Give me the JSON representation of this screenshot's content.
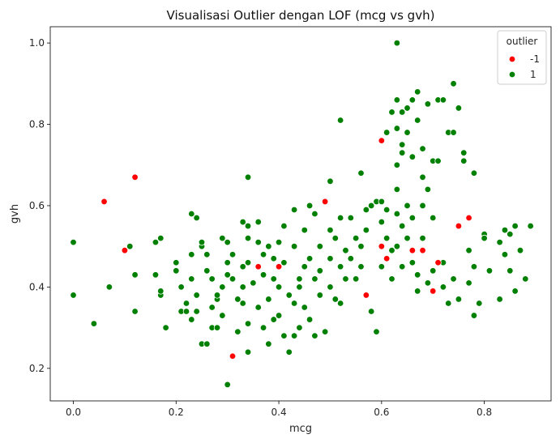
{
  "chart_data": {
    "type": "scatter",
    "title": "Visualisasi Outlier dengan LOF (mcg vs gvh)",
    "xlabel": "mcg",
    "ylabel": "gvh",
    "xlim": [
      -0.045,
      0.93
    ],
    "ylim": [
      0.12,
      1.04
    ],
    "x_ticks": [
      "0.0",
      "0.2",
      "0.4",
      "0.6",
      "0.8"
    ],
    "y_ticks": [
      "0.2",
      "0.4",
      "0.6",
      "0.8",
      "1.0"
    ],
    "grid": false,
    "legend": {
      "title": "outlier",
      "placement": "top-right"
    },
    "series": [
      {
        "name": "-1",
        "color": "#ff0000",
        "points": [
          [
            0.06,
            0.61
          ],
          [
            0.12,
            0.67
          ],
          [
            0.1,
            0.49
          ],
          [
            0.31,
            0.23
          ],
          [
            0.36,
            0.45
          ],
          [
            0.4,
            0.45
          ],
          [
            0.49,
            0.61
          ],
          [
            0.57,
            0.38
          ],
          [
            0.6,
            0.76
          ],
          [
            0.6,
            0.5
          ],
          [
            0.61,
            0.47
          ],
          [
            0.66,
            0.49
          ],
          [
            0.68,
            0.49
          ],
          [
            0.7,
            0.39
          ],
          [
            0.71,
            0.46
          ],
          [
            0.75,
            0.55
          ],
          [
            0.77,
            0.57
          ]
        ]
      },
      {
        "name": "1",
        "color": "#008000",
        "points": [
          [
            0.0,
            0.51
          ],
          [
            0.0,
            0.38
          ],
          [
            0.04,
            0.31
          ],
          [
            0.07,
            0.4
          ],
          [
            0.11,
            0.5
          ],
          [
            0.12,
            0.43
          ],
          [
            0.12,
            0.34
          ],
          [
            0.16,
            0.51
          ],
          [
            0.17,
            0.52
          ],
          [
            0.16,
            0.43
          ],
          [
            0.17,
            0.38
          ],
          [
            0.17,
            0.39
          ],
          [
            0.18,
            0.3
          ],
          [
            0.2,
            0.46
          ],
          [
            0.2,
            0.44
          ],
          [
            0.21,
            0.4
          ],
          [
            0.21,
            0.34
          ],
          [
            0.22,
            0.34
          ],
          [
            0.22,
            0.36
          ],
          [
            0.23,
            0.48
          ],
          [
            0.23,
            0.32
          ],
          [
            0.23,
            0.58
          ],
          [
            0.24,
            0.57
          ],
          [
            0.24,
            0.34
          ],
          [
            0.24,
            0.38
          ],
          [
            0.23,
            0.42
          ],
          [
            0.25,
            0.5
          ],
          [
            0.25,
            0.51
          ],
          [
            0.25,
            0.26
          ],
          [
            0.26,
            0.26
          ],
          [
            0.26,
            0.44
          ],
          [
            0.26,
            0.48
          ],
          [
            0.27,
            0.42
          ],
          [
            0.27,
            0.35
          ],
          [
            0.27,
            0.3
          ],
          [
            0.28,
            0.37
          ],
          [
            0.28,
            0.38
          ],
          [
            0.28,
            0.3
          ],
          [
            0.29,
            0.52
          ],
          [
            0.29,
            0.4
          ],
          [
            0.29,
            0.33
          ],
          [
            0.3,
            0.51
          ],
          [
            0.3,
            0.46
          ],
          [
            0.3,
            0.43
          ],
          [
            0.3,
            0.16
          ],
          [
            0.31,
            0.48
          ],
          [
            0.31,
            0.42
          ],
          [
            0.32,
            0.37
          ],
          [
            0.32,
            0.29
          ],
          [
            0.33,
            0.56
          ],
          [
            0.33,
            0.45
          ],
          [
            0.33,
            0.4
          ],
          [
            0.33,
            0.36
          ],
          [
            0.34,
            0.67
          ],
          [
            0.34,
            0.55
          ],
          [
            0.34,
            0.52
          ],
          [
            0.34,
            0.46
          ],
          [
            0.34,
            0.31
          ],
          [
            0.34,
            0.24
          ],
          [
            0.35,
            0.41
          ],
          [
            0.36,
            0.56
          ],
          [
            0.36,
            0.51
          ],
          [
            0.36,
            0.35
          ],
          [
            0.37,
            0.48
          ],
          [
            0.37,
            0.43
          ],
          [
            0.37,
            0.3
          ],
          [
            0.38,
            0.5
          ],
          [
            0.38,
            0.37
          ],
          [
            0.38,
            0.26
          ],
          [
            0.39,
            0.47
          ],
          [
            0.39,
            0.42
          ],
          [
            0.39,
            0.32
          ],
          [
            0.4,
            0.51
          ],
          [
            0.4,
            0.4
          ],
          [
            0.4,
            0.33
          ],
          [
            0.41,
            0.55
          ],
          [
            0.41,
            0.46
          ],
          [
            0.41,
            0.28
          ],
          [
            0.42,
            0.38
          ],
          [
            0.42,
            0.24
          ],
          [
            0.43,
            0.59
          ],
          [
            0.43,
            0.5
          ],
          [
            0.43,
            0.36
          ],
          [
            0.43,
            0.28
          ],
          [
            0.44,
            0.42
          ],
          [
            0.44,
            0.4
          ],
          [
            0.44,
            0.3
          ],
          [
            0.45,
            0.54
          ],
          [
            0.45,
            0.45
          ],
          [
            0.45,
            0.35
          ],
          [
            0.46,
            0.6
          ],
          [
            0.46,
            0.47
          ],
          [
            0.46,
            0.32
          ],
          [
            0.47,
            0.58
          ],
          [
            0.47,
            0.42
          ],
          [
            0.47,
            0.28
          ],
          [
            0.48,
            0.5
          ],
          [
            0.48,
            0.44
          ],
          [
            0.48,
            0.38
          ],
          [
            0.49,
            0.29
          ],
          [
            0.5,
            0.66
          ],
          [
            0.5,
            0.54
          ],
          [
            0.5,
            0.47
          ],
          [
            0.5,
            0.4
          ],
          [
            0.51,
            0.52
          ],
          [
            0.51,
            0.37
          ],
          [
            0.52,
            0.81
          ],
          [
            0.52,
            0.57
          ],
          [
            0.52,
            0.45
          ],
          [
            0.52,
            0.36
          ],
          [
            0.53,
            0.49
          ],
          [
            0.53,
            0.42
          ],
          [
            0.54,
            0.57
          ],
          [
            0.54,
            0.47
          ],
          [
            0.55,
            0.52
          ],
          [
            0.55,
            0.42
          ],
          [
            0.56,
            0.68
          ],
          [
            0.56,
            0.5
          ],
          [
            0.56,
            0.45
          ],
          [
            0.57,
            0.59
          ],
          [
            0.57,
            0.54
          ],
          [
            0.58,
            0.6
          ],
          [
            0.58,
            0.34
          ],
          [
            0.59,
            0.61
          ],
          [
            0.59,
            0.29
          ],
          [
            0.6,
            0.61
          ],
          [
            0.6,
            0.56
          ],
          [
            0.6,
            0.45
          ],
          [
            0.61,
            0.59
          ],
          [
            0.61,
            0.52
          ],
          [
            0.61,
            0.78
          ],
          [
            0.62,
            0.83
          ],
          [
            0.62,
            0.49
          ],
          [
            0.62,
            0.42
          ],
          [
            0.63,
            1.0
          ],
          [
            0.63,
            0.86
          ],
          [
            0.63,
            0.79
          ],
          [
            0.63,
            0.7
          ],
          [
            0.63,
            0.64
          ],
          [
            0.63,
            0.58
          ],
          [
            0.63,
            0.5
          ],
          [
            0.64,
            0.83
          ],
          [
            0.64,
            0.75
          ],
          [
            0.64,
            0.73
          ],
          [
            0.64,
            0.55
          ],
          [
            0.64,
            0.45
          ],
          [
            0.65,
            0.84
          ],
          [
            0.65,
            0.78
          ],
          [
            0.65,
            0.6
          ],
          [
            0.65,
            0.52
          ],
          [
            0.66,
            0.86
          ],
          [
            0.66,
            0.72
          ],
          [
            0.66,
            0.57
          ],
          [
            0.66,
            0.46
          ],
          [
            0.67,
            0.88
          ],
          [
            0.67,
            0.81
          ],
          [
            0.67,
            0.39
          ],
          [
            0.67,
            0.43
          ],
          [
            0.68,
            0.74
          ],
          [
            0.68,
            0.67
          ],
          [
            0.68,
            0.6
          ],
          [
            0.68,
            0.52
          ],
          [
            0.69,
            0.85
          ],
          [
            0.69,
            0.64
          ],
          [
            0.69,
            0.41
          ],
          [
            0.7,
            0.71
          ],
          [
            0.7,
            0.57
          ],
          [
            0.7,
            0.44
          ],
          [
            0.71,
            0.86
          ],
          [
            0.71,
            0.71
          ],
          [
            0.72,
            0.86
          ],
          [
            0.72,
            0.46
          ],
          [
            0.72,
            0.4
          ],
          [
            0.73,
            0.78
          ],
          [
            0.73,
            0.36
          ],
          [
            0.74,
            0.9
          ],
          [
            0.74,
            0.78
          ],
          [
            0.74,
            0.42
          ],
          [
            0.75,
            0.84
          ],
          [
            0.75,
            0.55
          ],
          [
            0.75,
            0.37
          ],
          [
            0.76,
            0.73
          ],
          [
            0.76,
            0.71
          ],
          [
            0.77,
            0.49
          ],
          [
            0.77,
            0.41
          ],
          [
            0.78,
            0.68
          ],
          [
            0.78,
            0.45
          ],
          [
            0.78,
            0.33
          ],
          [
            0.79,
            0.36
          ],
          [
            0.8,
            0.53
          ],
          [
            0.8,
            0.52
          ],
          [
            0.81,
            0.44
          ],
          [
            0.83,
            0.51
          ],
          [
            0.83,
            0.37
          ],
          [
            0.84,
            0.54
          ],
          [
            0.84,
            0.48
          ],
          [
            0.85,
            0.53
          ],
          [
            0.85,
            0.44
          ],
          [
            0.86,
            0.55
          ],
          [
            0.86,
            0.39
          ],
          [
            0.87,
            0.49
          ],
          [
            0.88,
            0.42
          ],
          [
            0.89,
            0.55
          ]
        ]
      }
    ]
  }
}
